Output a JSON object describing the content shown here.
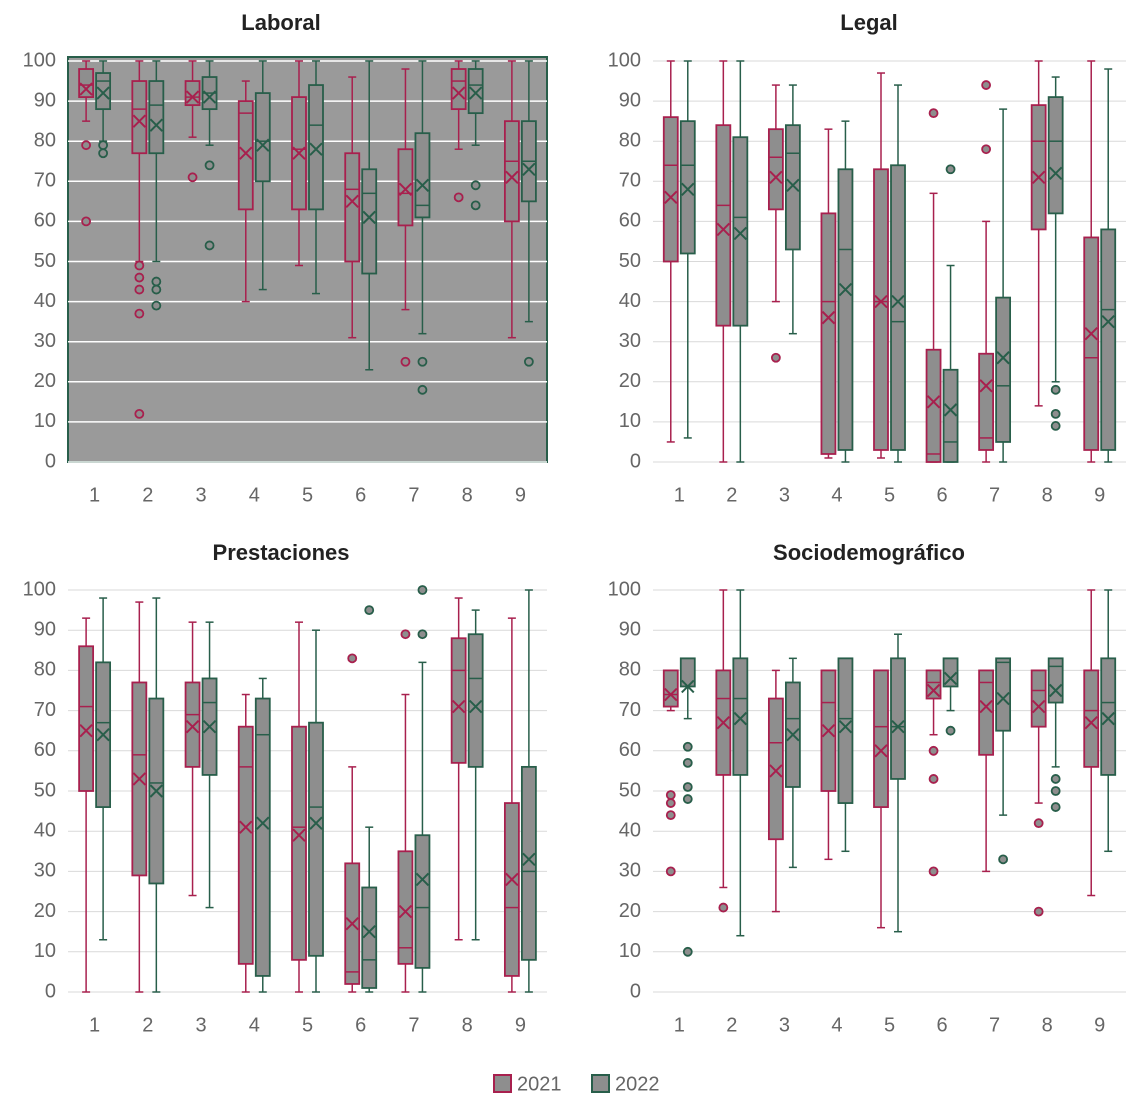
{
  "colors": {
    "y2021": "#a8204e",
    "y2022": "#285e4a",
    "boxFill": "#8e8e8e",
    "plotBgHighlight": "#9a9a9a",
    "frameHighlight": "#285e4a"
  },
  "legend": [
    {
      "label": "2021",
      "key": "y2021"
    },
    {
      "label": "2022",
      "key": "y2022"
    }
  ],
  "chart_data": [
    {
      "type": "box",
      "title": "Laboral",
      "highlighted": true,
      "categories": [
        "1",
        "2",
        "3",
        "4",
        "5",
        "6",
        "7",
        "8",
        "9"
      ],
      "ylim": [
        0,
        100
      ],
      "yticks": [
        0,
        10,
        20,
        30,
        40,
        50,
        60,
        70,
        80,
        90,
        100
      ],
      "grid": true,
      "series": [
        {
          "name": "2021",
          "boxes": [
            {
              "min": 85,
              "q1": 91,
              "median": 94,
              "q3": 98,
              "max": 100,
              "mean": 93,
              "outliers": [
                79,
                60
              ]
            },
            {
              "min": 50,
              "q1": 77,
              "median": 88,
              "q3": 95,
              "max": 100,
              "mean": 85,
              "outliers": [
                49,
                46,
                43,
                37,
                12
              ]
            },
            {
              "min": 81,
              "q1": 89,
              "median": 91,
              "q3": 95,
              "max": 100,
              "mean": 91,
              "outliers": [
                71
              ]
            },
            {
              "min": 40,
              "q1": 63,
              "median": 87,
              "q3": 90,
              "max": 95,
              "mean": 77,
              "outliers": []
            },
            {
              "min": 49,
              "q1": 63,
              "median": 78,
              "q3": 91,
              "max": 100,
              "mean": 77,
              "outliers": []
            },
            {
              "min": 31,
              "q1": 50,
              "median": 68,
              "q3": 77,
              "max": 96,
              "mean": 65,
              "outliers": []
            },
            {
              "min": 38,
              "q1": 59,
              "median": 67,
              "q3": 78,
              "max": 98,
              "mean": 68,
              "outliers": [
                25
              ]
            },
            {
              "min": 78,
              "q1": 88,
              "median": 95,
              "q3": 98,
              "max": 100,
              "mean": 92,
              "outliers": [
                66
              ]
            },
            {
              "min": 31,
              "q1": 60,
              "median": 75,
              "q3": 85,
              "max": 100,
              "mean": 71,
              "outliers": []
            }
          ]
        },
        {
          "name": "2022",
          "boxes": [
            {
              "min": 80,
              "q1": 88,
              "median": 95,
              "q3": 97,
              "max": 100,
              "mean": 92,
              "outliers": [
                79,
                77
              ]
            },
            {
              "min": 50,
              "q1": 77,
              "median": 89,
              "q3": 95,
              "max": 100,
              "mean": 84,
              "outliers": [
                45,
                43,
                39
              ]
            },
            {
              "min": 79,
              "q1": 88,
              "median": 92,
              "q3": 96,
              "max": 100,
              "mean": 91,
              "outliers": [
                74,
                54
              ]
            },
            {
              "min": 43,
              "q1": 70,
              "median": 80,
              "q3": 92,
              "max": 100,
              "mean": 79,
              "outliers": []
            },
            {
              "min": 42,
              "q1": 63,
              "median": 84,
              "q3": 94,
              "max": 100,
              "mean": 78,
              "outliers": []
            },
            {
              "min": 23,
              "q1": 47,
              "median": 67,
              "q3": 73,
              "max": 100,
              "mean": 61,
              "outliers": []
            },
            {
              "min": 32,
              "q1": 61,
              "median": 64,
              "q3": 82,
              "max": 100,
              "mean": 69,
              "outliers": [
                25,
                18
              ]
            },
            {
              "min": 79,
              "q1": 87,
              "median": 94,
              "q3": 98,
              "max": 100,
              "mean": 92,
              "outliers": [
                69,
                64
              ]
            },
            {
              "min": 35,
              "q1": 65,
              "median": 75,
              "q3": 85,
              "max": 100,
              "mean": 73,
              "outliers": [
                25
              ]
            }
          ]
        }
      ]
    },
    {
      "type": "box",
      "title": "Legal",
      "highlighted": false,
      "categories": [
        "1",
        "2",
        "3",
        "4",
        "5",
        "6",
        "7",
        "8",
        "9"
      ],
      "ylim": [
        0,
        100
      ],
      "yticks": [
        0,
        10,
        20,
        30,
        40,
        50,
        60,
        70,
        80,
        90,
        100
      ],
      "grid": true,
      "series": [
        {
          "name": "2021",
          "boxes": [
            {
              "min": 5,
              "q1": 50,
              "median": 74,
              "q3": 86,
              "max": 100,
              "mean": 66,
              "outliers": []
            },
            {
              "min": 0,
              "q1": 34,
              "median": 64,
              "q3": 84,
              "max": 100,
              "mean": 58,
              "outliers": []
            },
            {
              "min": 40,
              "q1": 63,
              "median": 76,
              "q3": 83,
              "max": 94,
              "mean": 71,
              "outliers": [
                26
              ]
            },
            {
              "min": 1,
              "q1": 2,
              "median": 40,
              "q3": 62,
              "max": 83,
              "mean": 36,
              "outliers": []
            },
            {
              "min": 1,
              "q1": 3,
              "median": 40,
              "q3": 73,
              "max": 97,
              "mean": 40,
              "outliers": []
            },
            {
              "min": 0,
              "q1": 0,
              "median": 2,
              "q3": 28,
              "max": 67,
              "mean": 15,
              "outliers": [
                87
              ]
            },
            {
              "min": 0,
              "q1": 3,
              "median": 6,
              "q3": 27,
              "max": 60,
              "mean": 19,
              "outliers": [
                94,
                78
              ]
            },
            {
              "min": 14,
              "q1": 58,
              "median": 80,
              "q3": 89,
              "max": 100,
              "mean": 71,
              "outliers": []
            },
            {
              "min": 0,
              "q1": 3,
              "median": 26,
              "q3": 56,
              "max": 100,
              "mean": 32,
              "outliers": []
            }
          ]
        },
        {
          "name": "2022",
          "boxes": [
            {
              "min": 6,
              "q1": 52,
              "median": 74,
              "q3": 85,
              "max": 100,
              "mean": 68,
              "outliers": []
            },
            {
              "min": 0,
              "q1": 34,
              "median": 61,
              "q3": 81,
              "max": 100,
              "mean": 57,
              "outliers": []
            },
            {
              "min": 32,
              "q1": 53,
              "median": 77,
              "q3": 84,
              "max": 94,
              "mean": 69,
              "outliers": []
            },
            {
              "min": 0,
              "q1": 3,
              "median": 53,
              "q3": 73,
              "max": 85,
              "mean": 43,
              "outliers": []
            },
            {
              "min": 0,
              "q1": 3,
              "median": 35,
              "q3": 74,
              "max": 94,
              "mean": 40,
              "outliers": []
            },
            {
              "min": 0,
              "q1": 0,
              "median": 5,
              "q3": 23,
              "max": 49,
              "mean": 13,
              "outliers": [
                73
              ]
            },
            {
              "min": 0,
              "q1": 5,
              "median": 19,
              "q3": 41,
              "max": 88,
              "mean": 26,
              "outliers": []
            },
            {
              "min": 20,
              "q1": 62,
              "median": 80,
              "q3": 91,
              "max": 96,
              "mean": 72,
              "outliers": [
                18,
                12,
                9
              ]
            },
            {
              "min": 0,
              "q1": 3,
              "median": 38,
              "q3": 58,
              "max": 98,
              "mean": 35,
              "outliers": []
            }
          ]
        }
      ]
    },
    {
      "type": "box",
      "title": "Prestaciones",
      "highlighted": false,
      "categories": [
        "1",
        "2",
        "3",
        "4",
        "5",
        "6",
        "7",
        "8",
        "9"
      ],
      "ylim": [
        0,
        100
      ],
      "yticks": [
        0,
        10,
        20,
        30,
        40,
        50,
        60,
        70,
        80,
        90,
        100
      ],
      "grid": true,
      "series": [
        {
          "name": "2021",
          "boxes": [
            {
              "min": 0,
              "q1": 50,
              "median": 71,
              "q3": 86,
              "max": 93,
              "mean": 65,
              "outliers": []
            },
            {
              "min": 0,
              "q1": 29,
              "median": 59,
              "q3": 77,
              "max": 97,
              "mean": 53,
              "outliers": []
            },
            {
              "min": 24,
              "q1": 56,
              "median": 69,
              "q3": 77,
              "max": 92,
              "mean": 66,
              "outliers": []
            },
            {
              "min": 0,
              "q1": 7,
              "median": 56,
              "q3": 66,
              "max": 74,
              "mean": 41,
              "outliers": []
            },
            {
              "min": 0,
              "q1": 8,
              "median": 41,
              "q3": 66,
              "max": 92,
              "mean": 39,
              "outliers": []
            },
            {
              "min": 0,
              "q1": 2,
              "median": 5,
              "q3": 32,
              "max": 56,
              "mean": 17,
              "outliers": [
                83
              ]
            },
            {
              "min": 0,
              "q1": 7,
              "median": 11,
              "q3": 35,
              "max": 74,
              "mean": 20,
              "outliers": [
                89
              ]
            },
            {
              "min": 13,
              "q1": 57,
              "median": 80,
              "q3": 88,
              "max": 98,
              "mean": 71,
              "outliers": []
            },
            {
              "min": 0,
              "q1": 4,
              "median": 21,
              "q3": 47,
              "max": 93,
              "mean": 28,
              "outliers": []
            }
          ]
        },
        {
          "name": "2022",
          "boxes": [
            {
              "min": 13,
              "q1": 46,
              "median": 67,
              "q3": 82,
              "max": 98,
              "mean": 64,
              "outliers": []
            },
            {
              "min": 0,
              "q1": 27,
              "median": 52,
              "q3": 73,
              "max": 98,
              "mean": 50,
              "outliers": []
            },
            {
              "min": 21,
              "q1": 54,
              "median": 72,
              "q3": 78,
              "max": 92,
              "mean": 66,
              "outliers": []
            },
            {
              "min": 0,
              "q1": 4,
              "median": 64,
              "q3": 73,
              "max": 78,
              "mean": 42,
              "outliers": []
            },
            {
              "min": 0,
              "q1": 9,
              "median": 46,
              "q3": 67,
              "max": 90,
              "mean": 42,
              "outliers": []
            },
            {
              "min": 0,
              "q1": 1,
              "median": 8,
              "q3": 26,
              "max": 41,
              "mean": 15,
              "outliers": [
                95
              ]
            },
            {
              "min": 0,
              "q1": 6,
              "median": 21,
              "q3": 39,
              "max": 82,
              "mean": 28,
              "outliers": [
                100,
                89
              ]
            },
            {
              "min": 13,
              "q1": 56,
              "median": 78,
              "q3": 89,
              "max": 95,
              "mean": 71,
              "outliers": []
            },
            {
              "min": 0,
              "q1": 8,
              "median": 30,
              "q3": 56,
              "max": 100,
              "mean": 33,
              "outliers": []
            }
          ]
        }
      ]
    },
    {
      "type": "box",
      "title": "Sociodemográfico",
      "highlighted": false,
      "categories": [
        "1",
        "2",
        "3",
        "4",
        "5",
        "6",
        "7",
        "8",
        "9"
      ],
      "ylim": [
        0,
        100
      ],
      "yticks": [
        0,
        10,
        20,
        30,
        40,
        50,
        60,
        70,
        80,
        90,
        100
      ],
      "grid": true,
      "series": [
        {
          "name": "2021",
          "boxes": [
            {
              "min": 70,
              "q1": 71,
              "median": 74,
              "q3": 80,
              "max": 80,
              "mean": 74,
              "outliers": [
                49,
                47,
                44,
                30
              ]
            },
            {
              "min": 26,
              "q1": 54,
              "median": 73,
              "q3": 80,
              "max": 100,
              "mean": 67,
              "outliers": [
                21
              ]
            },
            {
              "min": 20,
              "q1": 38,
              "median": 62,
              "q3": 73,
              "max": 80,
              "mean": 55,
              "outliers": []
            },
            {
              "min": 33,
              "q1": 50,
              "median": 72,
              "q3": 80,
              "max": 80,
              "mean": 65,
              "outliers": []
            },
            {
              "min": 16,
              "q1": 46,
              "median": 66,
              "q3": 80,
              "max": 80,
              "mean": 60,
              "outliers": []
            },
            {
              "min": 64,
              "q1": 73,
              "median": 77,
              "q3": 80,
              "max": 80,
              "mean": 75,
              "outliers": [
                60,
                53,
                30
              ]
            },
            {
              "min": 30,
              "q1": 59,
              "median": 77,
              "q3": 80,
              "max": 80,
              "mean": 71,
              "outliers": []
            },
            {
              "min": 47,
              "q1": 66,
              "median": 75,
              "q3": 80,
              "max": 80,
              "mean": 71,
              "outliers": [
                42,
                20
              ]
            },
            {
              "min": 24,
              "q1": 56,
              "median": 70,
              "q3": 80,
              "max": 100,
              "mean": 67,
              "outliers": []
            }
          ]
        },
        {
          "name": "2022",
          "boxes": [
            {
              "min": 68,
              "q1": 76,
              "median": 83,
              "q3": 83,
              "max": 83,
              "mean": 76,
              "outliers": [
                61,
                57,
                51,
                48,
                10
              ]
            },
            {
              "min": 14,
              "q1": 54,
              "median": 73,
              "q3": 83,
              "max": 100,
              "mean": 68,
              "outliers": []
            },
            {
              "min": 31,
              "q1": 51,
              "median": 68,
              "q3": 77,
              "max": 83,
              "mean": 64,
              "outliers": []
            },
            {
              "min": 35,
              "q1": 47,
              "median": 68,
              "q3": 83,
              "max": 83,
              "mean": 66,
              "outliers": []
            },
            {
              "min": 15,
              "q1": 53,
              "median": 66,
              "q3": 83,
              "max": 89,
              "mean": 66,
              "outliers": []
            },
            {
              "min": 70,
              "q1": 76,
              "median": 83,
              "q3": 83,
              "max": 83,
              "mean": 78,
              "outliers": [
                65
              ]
            },
            {
              "min": 44,
              "q1": 65,
              "median": 82,
              "q3": 83,
              "max": 83,
              "mean": 73,
              "outliers": [
                33
              ]
            },
            {
              "min": 56,
              "q1": 72,
              "median": 81,
              "q3": 83,
              "max": 83,
              "mean": 75,
              "outliers": [
                53,
                50,
                46
              ]
            },
            {
              "min": 35,
              "q1": 54,
              "median": 72,
              "q3": 83,
              "max": 100,
              "mean": 68,
              "outliers": []
            }
          ]
        }
      ]
    }
  ]
}
